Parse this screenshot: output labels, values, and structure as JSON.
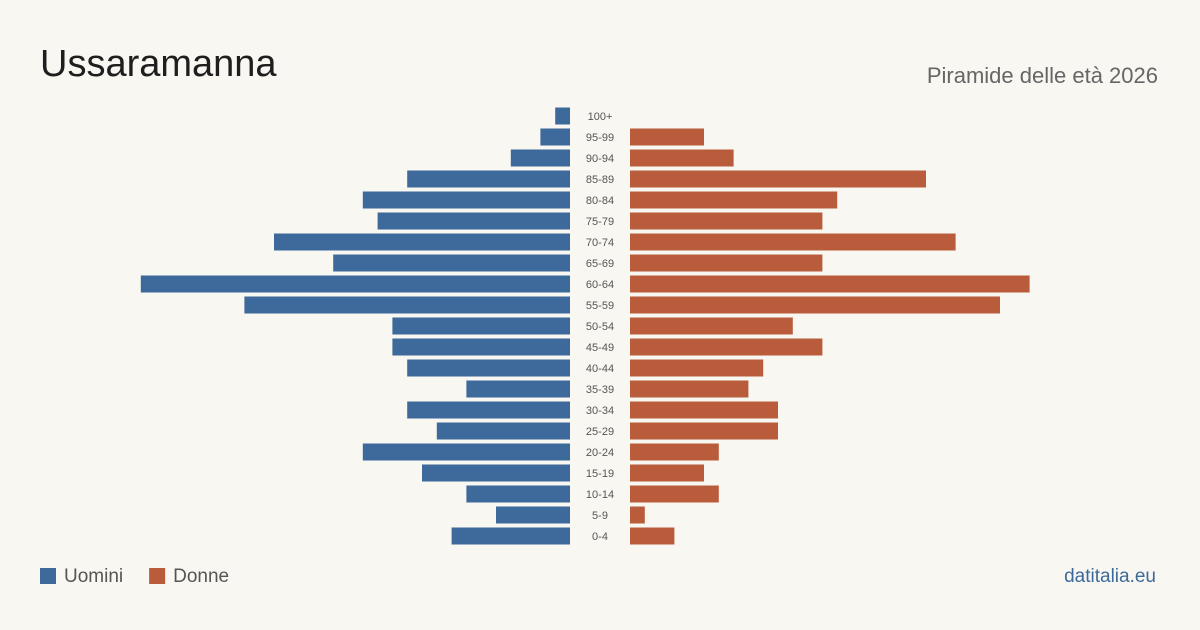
{
  "chart_data": {
    "type": "pyramid",
    "title": "Ussaramanna",
    "subtitle": "Piramide delle età 2026",
    "source": "datitalia.eu",
    "categories": [
      "100+",
      "95-99",
      "90-94",
      "85-89",
      "80-84",
      "75-79",
      "70-74",
      "65-69",
      "60-64",
      "55-59",
      "50-54",
      "45-49",
      "40-44",
      "35-39",
      "30-34",
      "25-29",
      "20-24",
      "15-19",
      "10-14",
      "5-9",
      "0-4"
    ],
    "series": [
      {
        "name": "Uomini",
        "color": "#3d6a9b",
        "values": [
          1,
          2,
          4,
          11,
          14,
          13,
          20,
          16,
          29,
          22,
          12,
          12,
          11,
          7,
          11,
          9,
          14,
          10,
          7,
          5,
          8
        ]
      },
      {
        "name": "Donne",
        "color": "#b95c3b",
        "values": [
          0,
          5,
          7,
          20,
          14,
          13,
          22,
          13,
          27,
          25,
          11,
          13,
          9,
          8,
          10,
          10,
          6,
          5,
          6,
          1,
          3
        ]
      }
    ]
  }
}
